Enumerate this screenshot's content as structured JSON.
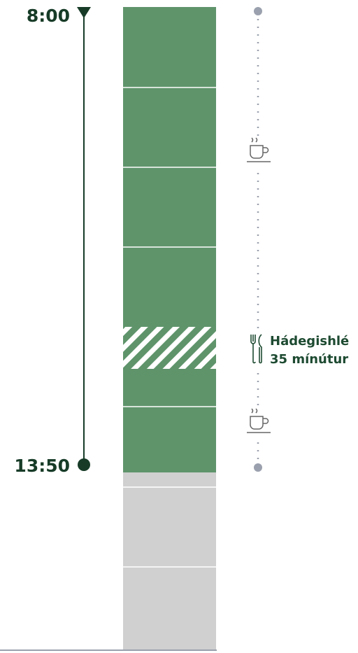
{
  "timeline": {
    "start": "8:00",
    "end": "13:50"
  },
  "lunch": {
    "title": "Hádegishlé",
    "duration": "35 mínútur"
  }
}
